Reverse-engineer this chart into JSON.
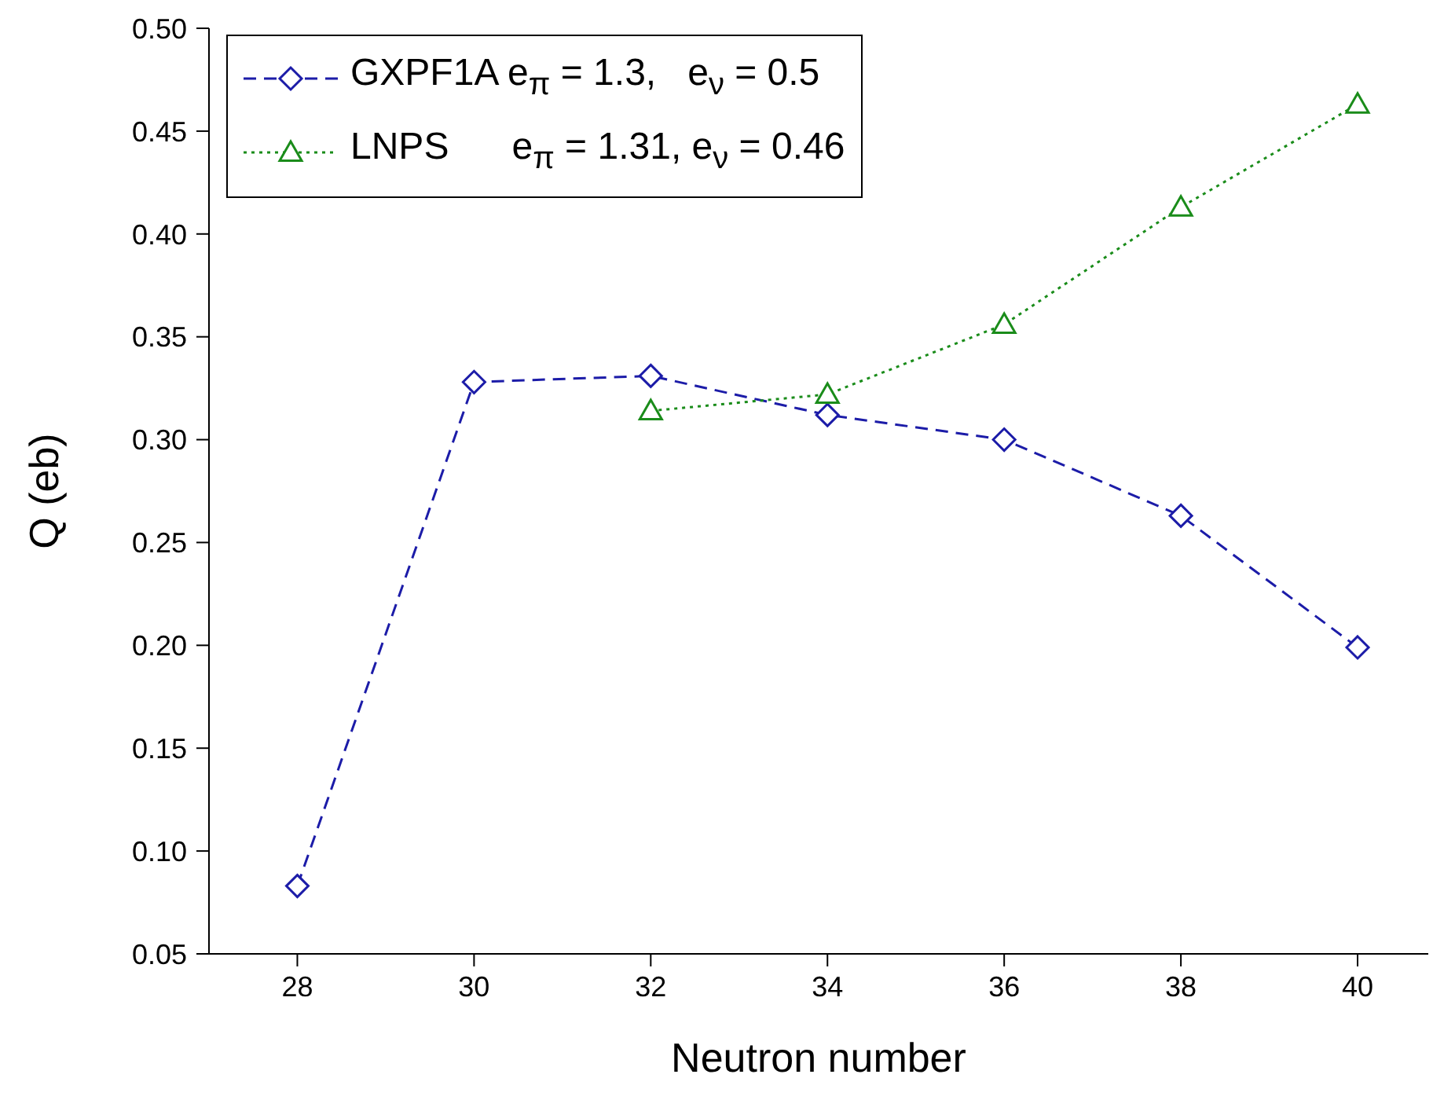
{
  "chart_data": {
    "type": "line",
    "xlabel": "Neutron number",
    "ylabel": "Q (eb)",
    "x": [
      28,
      30,
      32,
      34,
      36,
      38,
      40
    ],
    "series": [
      {
        "name": "GXPF1A e$_{π}$ = 1.3,   e$_{ν}$ = 0.5",
        "color": "#1c1ca8",
        "values": [
          0.083,
          0.328,
          0.331,
          0.312,
          0.3,
          0.263,
          0.199
        ],
        "marker": "diamond",
        "line_style": "dashed"
      },
      {
        "name": "LNPS      e$_{π}$ = 1.31, e$_{ν}$ = 0.46",
        "color": "#1a8c1a",
        "values": [
          null,
          null,
          0.314,
          0.322,
          0.356,
          0.413,
          0.463
        ],
        "marker": "triangle",
        "line_style": "dotted"
      }
    ],
    "xlim": [
      27,
      40.8
    ],
    "xticks": [
      28,
      30,
      32,
      34,
      36,
      38,
      40
    ],
    "ylim": [
      0.05,
      0.5
    ],
    "yticks": [
      0.05,
      {
        "value": 0.1,
        "label": "0.10"
      },
      0.15,
      {
        "value": 0.2,
        "label": "0.20"
      },
      0.25,
      {
        "value": 0.3,
        "label": "0.30"
      },
      0.35,
      {
        "value": 0.4,
        "label": "0.40"
      },
      0.45,
      {
        "value": 0.5,
        "label": "0.50"
      }
    ],
    "legend": "top left",
    "grid": false
  }
}
